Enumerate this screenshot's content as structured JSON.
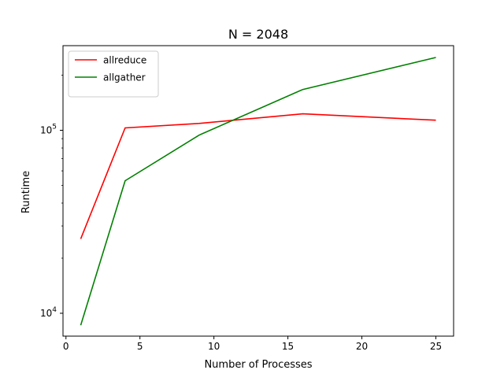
{
  "chart_data": {
    "type": "line",
    "title": "N = 2048",
    "xlabel": "Number of Processes",
    "ylabel": "Runtime",
    "xlim": [
      -0.2,
      26.2
    ],
    "ylim": [
      7500,
      290000
    ],
    "yscale": "log",
    "x_ticks": [
      0,
      5,
      10,
      15,
      20,
      25
    ],
    "y_major_ticks": [
      {
        "value": 10000,
        "base": "10",
        "exp": "4"
      },
      {
        "value": 100000,
        "base": "10",
        "exp": "5"
      }
    ],
    "y_minor_ticks": [
      20000,
      30000,
      40000,
      50000,
      60000,
      70000,
      80000,
      90000,
      200000
    ],
    "legend_position": "upper-left",
    "grid": false,
    "series": [
      {
        "name": "allreduce",
        "color": "#ff0000",
        "x": [
          1,
          4,
          9,
          16,
          25
        ],
        "values": [
          25500,
          103000,
          109000,
          123000,
          113500
        ]
      },
      {
        "name": "allgather",
        "color": "#008000",
        "x": [
          1,
          4,
          9,
          16,
          25
        ],
        "values": [
          8600,
          53000,
          94000,
          167000,
          250000
        ]
      }
    ]
  }
}
